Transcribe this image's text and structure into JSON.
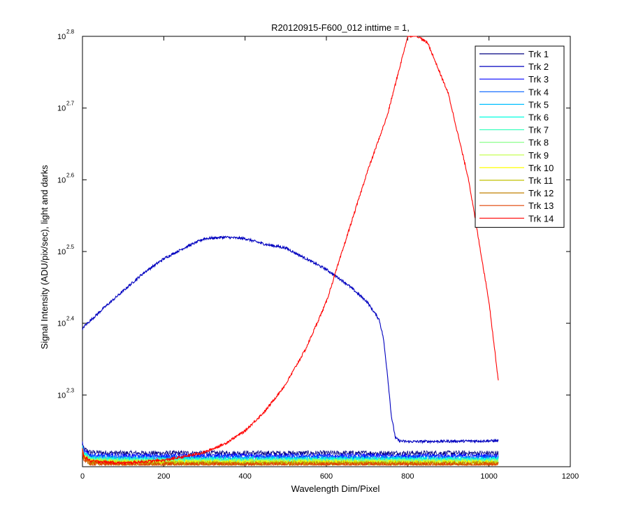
{
  "chart_data": {
    "type": "line",
    "title": "R20120915-F600_012 inttime = 1,",
    "xlabel": "Wavelength Dim/Pixel",
    "ylabel": "Signal Intensity (ADU/pix/sec), light and darks",
    "xlim": [
      0,
      1200
    ],
    "ylim_log10": [
      2.2,
      2.8
    ],
    "yscale": "log",
    "x_ticks": [
      0,
      200,
      400,
      600,
      800,
      1000,
      1200
    ],
    "y_ticks": [
      {
        "base": "10",
        "exp": "2.3"
      },
      {
        "base": "10",
        "exp": "2.4"
      },
      {
        "base": "10",
        "exp": "2.5"
      },
      {
        "base": "10",
        "exp": "2.6"
      },
      {
        "base": "10",
        "exp": "2.7"
      },
      {
        "base": "10",
        "exp": "2.8"
      }
    ],
    "grid": false,
    "legend_position": "top-right",
    "series": [
      {
        "name": "Trk 1",
        "color": "#000080",
        "x": [
          0,
          3,
          20,
          100,
          300,
          500,
          700,
          900,
          1023
        ],
        "log10y": [
          2.235,
          2.225,
          2.22,
          2.219,
          2.219,
          2.219,
          2.219,
          2.219,
          2.219
        ]
      },
      {
        "name": "Trk 2",
        "color": "#0000bf",
        "x": [
          0,
          3,
          50,
          100,
          150,
          200,
          250,
          300,
          350,
          400,
          450,
          500,
          550,
          600,
          650,
          700,
          730,
          740,
          750,
          760,
          770,
          780,
          800,
          1000,
          1023
        ],
        "log10y": [
          2.39,
          2.395,
          2.42,
          2.445,
          2.47,
          2.49,
          2.505,
          2.518,
          2.52,
          2.518,
          2.51,
          2.505,
          2.49,
          2.475,
          2.455,
          2.43,
          2.405,
          2.38,
          2.33,
          2.27,
          2.24,
          2.236,
          2.235,
          2.236,
          2.236
        ]
      },
      {
        "name": "Trk 3",
        "color": "#0000ff",
        "x": [
          0,
          3,
          20,
          100,
          300,
          500,
          700,
          900,
          1023
        ],
        "log10y": [
          2.232,
          2.222,
          2.216,
          2.215,
          2.215,
          2.215,
          2.215,
          2.215,
          2.215
        ]
      },
      {
        "name": "Trk 4",
        "color": "#0060ff",
        "x": [
          0,
          3,
          20,
          100,
          300,
          500,
          700,
          900,
          1023
        ],
        "log10y": [
          2.23,
          2.22,
          2.214,
          2.213,
          2.213,
          2.213,
          2.213,
          2.213,
          2.213
        ]
      },
      {
        "name": "Trk 5",
        "color": "#00bfff",
        "x": [
          0,
          3,
          20,
          100,
          300,
          500,
          700,
          900,
          1023
        ],
        "log10y": [
          2.229,
          2.219,
          2.212,
          2.211,
          2.211,
          2.211,
          2.211,
          2.211,
          2.211
        ]
      },
      {
        "name": "Trk 6",
        "color": "#00ffe0",
        "x": [
          0,
          3,
          20,
          100,
          300,
          500,
          700,
          900,
          1023
        ],
        "log10y": [
          2.228,
          2.218,
          2.211,
          2.21,
          2.21,
          2.21,
          2.21,
          2.21,
          2.21
        ]
      },
      {
        "name": "Trk 7",
        "color": "#40ffbf",
        "x": [
          0,
          3,
          20,
          100,
          300,
          500,
          700,
          900,
          1023
        ],
        "log10y": [
          2.227,
          2.217,
          2.21,
          2.209,
          2.209,
          2.209,
          2.209,
          2.209,
          2.209
        ]
      },
      {
        "name": "Trk 8",
        "color": "#80ff80",
        "x": [
          0,
          3,
          20,
          100,
          300,
          500,
          700,
          900,
          1023
        ],
        "log10y": [
          2.226,
          2.216,
          2.209,
          2.208,
          2.208,
          2.208,
          2.208,
          2.208,
          2.208
        ]
      },
      {
        "name": "Trk 9",
        "color": "#c0ff40",
        "x": [
          0,
          3,
          20,
          100,
          300,
          500,
          700,
          900,
          1023
        ],
        "log10y": [
          2.225,
          2.215,
          2.208,
          2.207,
          2.207,
          2.207,
          2.207,
          2.207,
          2.207
        ]
      },
      {
        "name": "Trk 10",
        "color": "#ffff00",
        "x": [
          0,
          3,
          20,
          100,
          300,
          500,
          700,
          900,
          1023
        ],
        "log10y": [
          2.224,
          2.214,
          2.207,
          2.206,
          2.206,
          2.206,
          2.206,
          2.206,
          2.206
        ]
      },
      {
        "name": "Trk 11",
        "color": "#c0c000",
        "x": [
          0,
          3,
          20,
          100,
          300,
          500,
          700,
          900,
          1023
        ],
        "log10y": [
          2.223,
          2.213,
          2.206,
          2.205,
          2.205,
          2.205,
          2.205,
          2.205,
          2.205
        ]
      },
      {
        "name": "Trk 12",
        "color": "#c08000",
        "x": [
          0,
          3,
          20,
          100,
          300,
          500,
          700,
          900,
          1023
        ],
        "log10y": [
          2.222,
          2.212,
          2.205,
          2.204,
          2.204,
          2.204,
          2.204,
          2.204,
          2.204
        ]
      },
      {
        "name": "Trk 13",
        "color": "#e04000",
        "x": [
          0,
          3,
          20,
          100,
          300,
          500,
          700,
          900,
          1023
        ],
        "log10y": [
          2.221,
          2.211,
          2.204,
          2.203,
          2.203,
          2.203,
          2.203,
          2.203,
          2.203
        ]
      },
      {
        "name": "Trk 14",
        "color": "#ff0000",
        "x": [
          0,
          3,
          20,
          100,
          200,
          250,
          300,
          350,
          400,
          450,
          500,
          550,
          600,
          650,
          700,
          750,
          800,
          820,
          850,
          900,
          950,
          1000,
          1023
        ],
        "log10y": [
          2.225,
          2.215,
          2.208,
          2.205,
          2.209,
          2.214,
          2.22,
          2.232,
          2.25,
          2.278,
          2.315,
          2.365,
          2.43,
          2.52,
          2.61,
          2.69,
          2.8,
          2.802,
          2.79,
          2.72,
          2.6,
          2.43,
          2.32
        ]
      }
    ]
  }
}
